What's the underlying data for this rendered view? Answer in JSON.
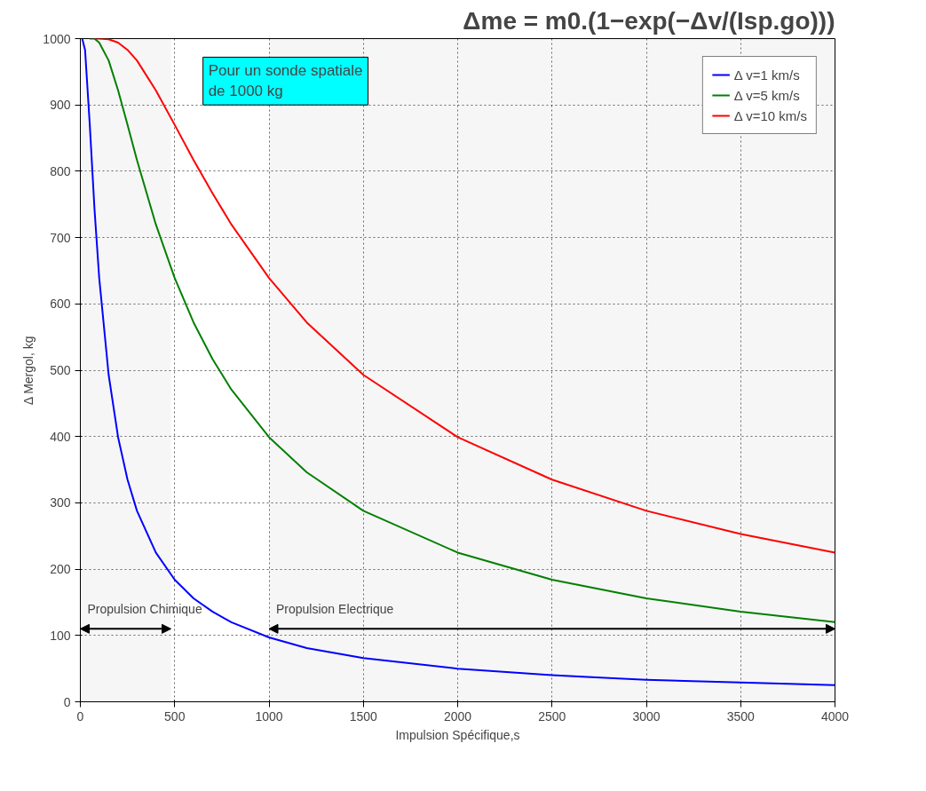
{
  "chart_data": {
    "type": "line",
    "xlabel": "Impulsion Spécifique,s",
    "ylabel": "Δ Mergol, kg",
    "x": [
      10,
      25,
      50,
      75,
      100,
      150,
      200,
      250,
      300,
      400,
      500,
      600,
      700,
      800,
      1000,
      1200,
      1500,
      2000,
      2500,
      3000,
      3500,
      4000
    ],
    "series": [
      {
        "name": "Δ v=1 km/s",
        "color": "#0000ff",
        "values": [
          1000,
          983,
          870,
          743,
          639,
          493,
          399,
          335,
          288,
          225,
          184,
          156,
          136,
          120,
          97,
          81,
          66,
          50,
          40,
          33,
          29,
          25
        ]
      },
      {
        "name": "Δ v=5 km/s",
        "color": "#008000",
        "values": [
          null,
          null,
          1000,
          1000,
          994,
          967,
          922,
          870,
          817,
          720,
          639,
          572,
          517,
          471,
          399,
          346,
          288,
          225,
          184,
          156,
          136,
          120
        ]
      },
      {
        "name": "Δ v=10 km/s",
        "color": "#ff0000",
        "values": [
          null,
          null,
          null,
          1000,
          1000,
          999,
          994,
          983,
          967,
          922,
          870,
          817,
          767,
          720,
          639,
          572,
          493,
          399,
          335,
          288,
          253,
          225
        ]
      }
    ],
    "xlim": [
      0,
      4000
    ],
    "xticks": [
      0,
      500,
      1000,
      1500,
      2000,
      2500,
      3000,
      3500,
      4000
    ],
    "ylim": [
      0,
      1000
    ],
    "yticks": [
      0,
      100,
      200,
      300,
      400,
      500,
      600,
      700,
      800,
      900,
      1000
    ],
    "grid": true,
    "legend": "top right",
    "marker": "none",
    "line_style": "solid",
    "bands": [
      {
        "axis": "x",
        "from": 0,
        "to": 480,
        "label": "Propulsion Chimique"
      },
      {
        "axis": "x",
        "from": 1000,
        "to": 4000,
        "label": "Propulsion Electrique"
      }
    ],
    "annotations": [
      "Δme = m0.(1−exp(−Δv/(Isp.go)))",
      "Pour un sonde spatiale de 1000 kg"
    ]
  }
}
